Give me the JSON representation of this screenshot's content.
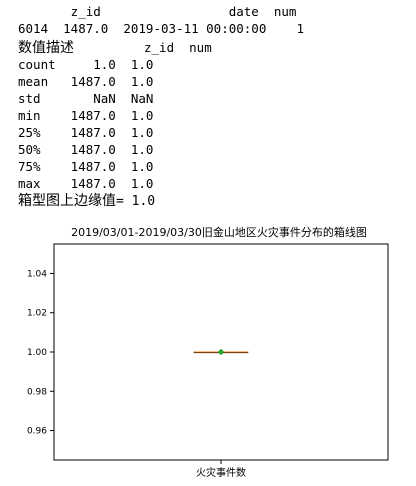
{
  "printout": {
    "df_header": "       z_id                 date  num",
    "df_row": "6014  1487.0  2019-03-11 00:00:00    1",
    "describe_title": "数值描述",
    "describe_header": "z_id  num",
    "describe_rows": [
      "count     1.0  1.0",
      "mean   1487.0  1.0",
      "std       NaN  NaN",
      "min    1487.0  1.0",
      "25%    1487.0  1.0",
      "50%    1487.0  1.0",
      "75%    1487.0  1.0",
      "max    1487.0  1.0"
    ],
    "upper_whisker_label": "箱型图上边缘值",
    "upper_whisker_value": "= 1.0"
  },
  "chart_data": {
    "type": "box",
    "title": "2019/03/01-2019/03/30旧金山地区火灾事件分布的箱线图",
    "categories": [
      "火灾事件数"
    ],
    "ylim": [
      0.945,
      1.055
    ],
    "yticks": [
      "0.96",
      "0.98",
      "1.00",
      "1.02",
      "1.04"
    ],
    "ytick_values": [
      0.96,
      0.98,
      1.0,
      1.02,
      1.04
    ],
    "boxes": [
      {
        "category": "火灾事件数",
        "min": 1.0,
        "q1": 1.0,
        "median": 1.0,
        "q3": 1.0,
        "max": 1.0,
        "mean": 1.0
      }
    ],
    "colors": {
      "box": "#000000",
      "median": "#ff7f0e",
      "mean": "#2ca02c"
    },
    "grid": false
  }
}
